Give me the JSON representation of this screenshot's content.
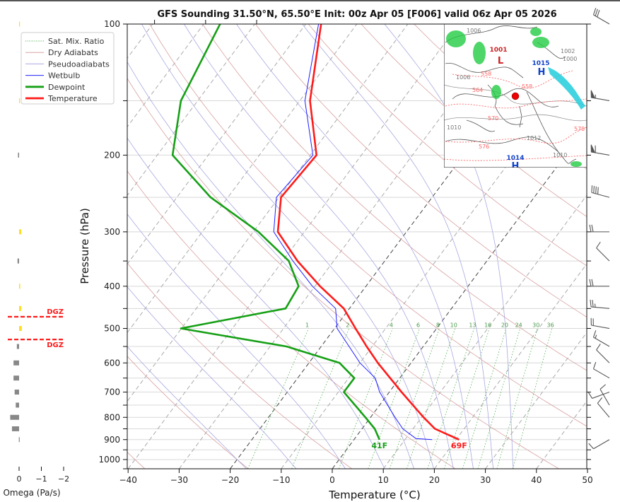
{
  "chart_data": {
    "type": "line",
    "title": "GFS Sounding 31.50°N, 65.50°E Init: 00z Apr 05 [F006] valid 06z Apr 05 2026",
    "xlabel": "Temperature (°C)",
    "ylabel": "Pressure (hPa)",
    "xlim": [
      -40,
      50
    ],
    "ylim": [
      1050,
      100
    ],
    "x_ticks": [
      "−40",
      "−30",
      "−20",
      "−10",
      "0",
      "10",
      "20",
      "30",
      "40",
      "50"
    ],
    "x_tick_values": [
      -40,
      -30,
      -20,
      -10,
      0,
      10,
      20,
      30,
      40,
      50
    ],
    "y_ticks": [
      "100",
      "200",
      "300",
      "400",
      "500",
      "600",
      "700",
      "800",
      "900",
      "1000"
    ],
    "y_tick_values": [
      100,
      200,
      300,
      400,
      500,
      600,
      700,
      800,
      900,
      1000
    ],
    "grid": true,
    "legend_position": "top-left",
    "legend": [
      {
        "label": "Sat. Mix. Ratio",
        "color": "#4caf50",
        "style": "dotted"
      },
      {
        "label": "Dry Adiabats",
        "color": "#d9a0a0",
        "style": "solid"
      },
      {
        "label": "Pseudoadiabats",
        "color": "#a8a8e0",
        "style": "solid"
      },
      {
        "label": "Wetbulb",
        "color": "#1f1fff",
        "style": "solid"
      },
      {
        "label": "Dewpoint",
        "color": "#16a016",
        "style": "solid"
      },
      {
        "label": "Temperature",
        "color": "#ff1a1a",
        "style": "solid"
      }
    ],
    "series": [
      {
        "name": "Temperature",
        "color": "#ff1a1a",
        "pressure": [
          900,
          850,
          800,
          700,
          600,
          550,
          500,
          450,
          400,
          350,
          300,
          250,
          200,
          150,
          100
        ],
        "values": [
          20.6,
          14.3,
          10.4,
          2.4,
          -6.5,
          -11.1,
          -15.9,
          -21.1,
          -29.0,
          -37.1,
          -45.2,
          -49.6,
          -48.8,
          -58.0,
          -67.0
        ]
      },
      {
        "name": "Dewpoint",
        "color": "#16a016",
        "pressure": [
          900,
          850,
          800,
          700,
          650,
          600,
          550,
          500,
          450,
          400,
          350,
          300,
          250,
          200,
          150,
          100
        ],
        "values": [
          5.0,
          2.5,
          -1.0,
          -8.9,
          -8.9,
          -14.0,
          -26.8,
          -50.1,
          -32.5,
          -33.2,
          -38.8,
          -49.0,
          -63.4,
          -77.0,
          -83.3,
          -86.8
        ]
      },
      {
        "name": "Wetbulb",
        "color": "#1f1fff",
        "pressure": [
          900,
          895,
          850,
          800,
          700,
          650,
          600,
          500,
          450,
          400,
          350,
          300,
          250,
          200,
          150,
          100
        ],
        "values": [
          15.3,
          12.0,
          8.0,
          4.8,
          -1.9,
          -4.8,
          -10.0,
          -19.5,
          -22.7,
          -30.5,
          -38.0,
          -46.0,
          -50.5,
          -49.5,
          -59.0,
          -67.5
        ]
      }
    ],
    "surface_labels": {
      "dewpoint": "41F",
      "temperature": "69F"
    },
    "mixing_ratio": {
      "values": [
        1,
        2,
        4,
        6,
        8,
        10,
        13,
        16,
        20,
        24,
        30,
        36
      ],
      "labels": [
        "1",
        "2",
        "4",
        "6",
        "8",
        "10",
        "13",
        "16",
        "20",
        "24",
        "30",
        "36"
      ]
    },
    "isotherms_highlighted": [
      0,
      -20
    ],
    "omega": {
      "xlabel": "Omega (Pa/s)",
      "x_ticks": [
        "0",
        "−1",
        "−2"
      ],
      "x_tick_values": [
        0,
        -1,
        -2
      ],
      "pressure": [
        100,
        150,
        200,
        300,
        350,
        400,
        450,
        500,
        550,
        600,
        650,
        700,
        750,
        800,
        850,
        900
      ],
      "values": [
        -0.01,
        -0.01,
        0.05,
        -0.1,
        0.07,
        -0.05,
        -0.1,
        -0.12,
        0.1,
        0.25,
        0.25,
        0.2,
        0.15,
        0.4,
        0.32,
        0.01
      ],
      "dgz_label": "DGZ",
      "dgz_pressure": [
        470,
        530
      ]
    },
    "winds": {
      "pressure": [
        100,
        150,
        200,
        250,
        300,
        350,
        400,
        450,
        500,
        550,
        600,
        650,
        700,
        750,
        800,
        900
      ],
      "direction_deg": [
        300,
        280,
        280,
        285,
        270,
        315,
        270,
        275,
        280,
        300,
        315,
        300,
        250,
        330,
        320,
        240
      ],
      "speed_kt": [
        30,
        55,
        60,
        40,
        20,
        10,
        20,
        25,
        20,
        15,
        10,
        10,
        10,
        10,
        10,
        10
      ]
    }
  },
  "inset_map": {
    "low_label": "1001",
    "low_symbol": "L",
    "high_labels": [
      {
        "value": "1015",
        "symbol": "H"
      },
      {
        "value": "1014",
        "symbol": "H"
      }
    ],
    "contour_labels": [
      "1006",
      "1006",
      "1002",
      "1000",
      "1010",
      "1012",
      "1010",
      "558",
      "564",
      "570",
      "576",
      "558",
      "570"
    ]
  }
}
